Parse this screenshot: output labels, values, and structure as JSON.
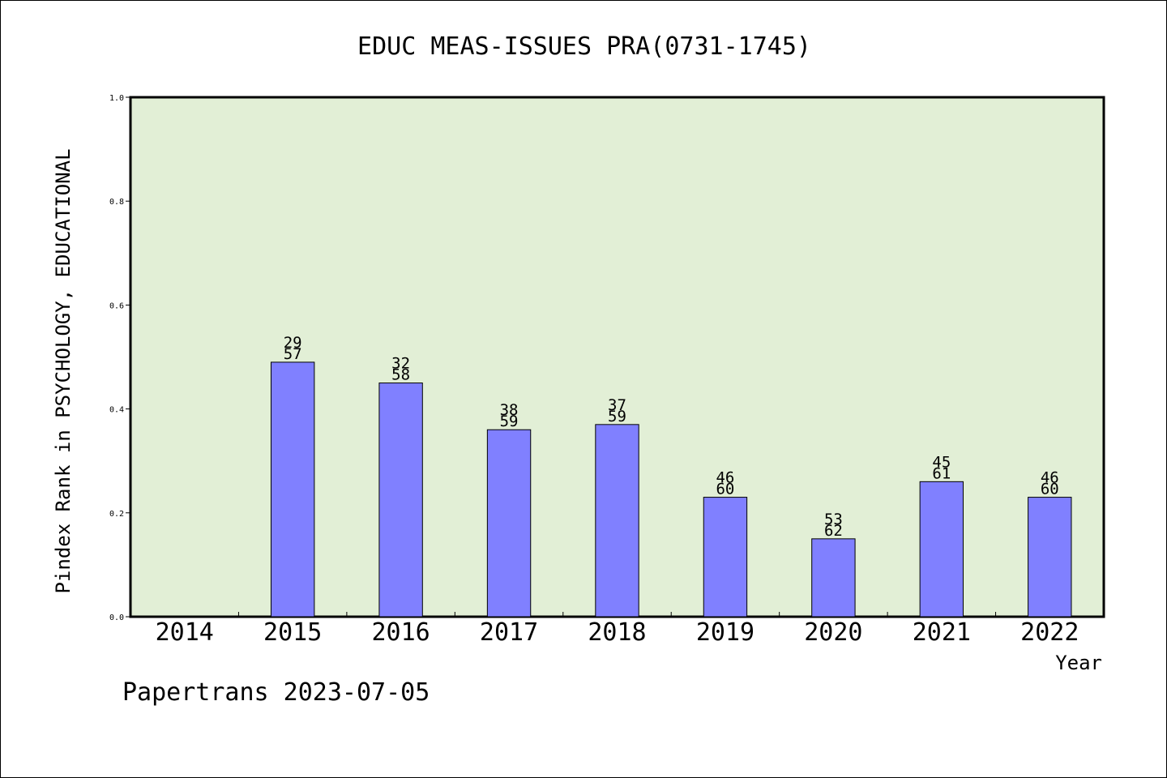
{
  "chart_data": {
    "type": "bar",
    "title": "EDUC MEAS-ISSUES PRA(0731-1745)",
    "xlabel": "Year",
    "ylabel": "Pindex Rank in PSYCHOLOGY, EDUCATIONAL",
    "footer": "Papertrans 2023-07-05",
    "categories": [
      "2014",
      "2015",
      "2016",
      "2017",
      "2018",
      "2019",
      "2020",
      "2021",
      "2022"
    ],
    "values": [
      null,
      0.49,
      0.45,
      0.36,
      0.37,
      0.23,
      0.15,
      0.26,
      0.23
    ],
    "labels_top": [
      "",
      "29",
      "32",
      "38",
      "37",
      "46",
      "53",
      "45",
      "46"
    ],
    "labels_bottom": [
      "",
      "57",
      "58",
      "59",
      "59",
      "60",
      "62",
      "61",
      "60"
    ],
    "ylim": [
      0,
      1.0
    ],
    "yticks": [
      "0.0",
      "0.2",
      "0.4",
      "0.6",
      "0.8",
      "1.0"
    ],
    "grid": false,
    "colors": {
      "plot_background": "#e2efd6",
      "bar_fill": "#8080ff",
      "bar_stroke": "#000000",
      "axis": "#000000"
    }
  }
}
